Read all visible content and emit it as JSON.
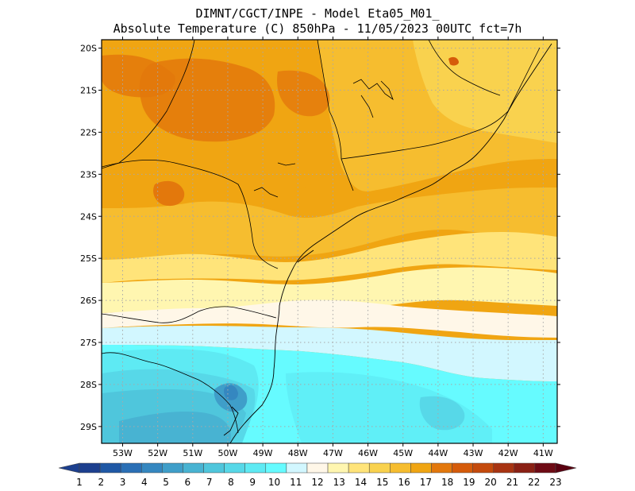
{
  "title": {
    "line1": "DIMNT/CGCT/INPE -  Model Eta05_M01_",
    "line2": "Absolute Temperature (C) 850hPa -  11/05/2023 00UTC fct=7h"
  },
  "axes": {
    "lat_labels": [
      "20S",
      "21S",
      "22S",
      "23S",
      "24S",
      "25S",
      "26S",
      "27S",
      "28S",
      "29S"
    ],
    "lon_labels": [
      "53W",
      "52W",
      "51W",
      "50W",
      "49W",
      "48W",
      "47W",
      "46W",
      "45W",
      "44W",
      "43W",
      "42W",
      "41W"
    ],
    "lat_range": [
      -29.4,
      -19.8
    ],
    "lon_range": [
      -53.6,
      -40.6
    ]
  },
  "colorbar": {
    "labels": [
      "1",
      "2",
      "3",
      "4",
      "5",
      "6",
      "7",
      "8",
      "9",
      "10",
      "11",
      "12",
      "13",
      "14",
      "15",
      "16",
      "17",
      "18",
      "19",
      "20",
      "21",
      "22",
      "23"
    ],
    "colors": [
      "#1c3f8e",
      "#1f58a5",
      "#2a6fb5",
      "#3587c0",
      "#3f9ec9",
      "#48b3d2",
      "#4fc6dc",
      "#57d8e8",
      "#5eeaf3",
      "#66fbff",
      "#d2f7ff",
      "#fff7e8",
      "#fff6b0",
      "#ffe47a",
      "#f9d24e",
      "#f6bd2f",
      "#f0a512",
      "#e3780c",
      "#d55b0a",
      "#c44a0c",
      "#a83412",
      "#8a2014",
      "#6e0a14",
      "#5a0010"
    ]
  },
  "map": {
    "features": [
      "coastline",
      "state-borders",
      "temperature-field",
      "grid"
    ]
  }
}
